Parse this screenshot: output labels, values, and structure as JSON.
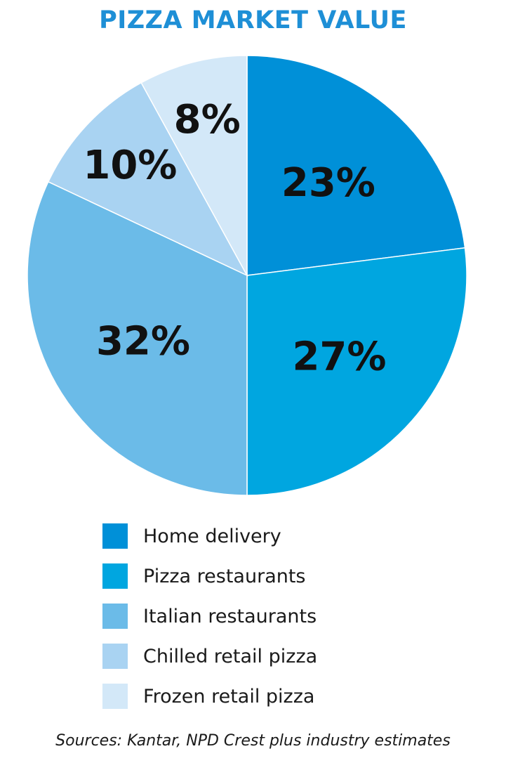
{
  "title": "PIZZA MARKET VALUE",
  "source": "Sources: Kantar, NPD Crest plus industry estimates",
  "colors": {
    "title": "#1e8fd6",
    "home_delivery": "#0090d8",
    "pizza_restaurants": "#00a6e0",
    "italian_restaurants": "#6bbbe8",
    "chilled_retail_pizza": "#a9d3f2",
    "frozen_retail_pizza": "#d3e8f8"
  },
  "chart_data": {
    "type": "pie",
    "title": "PIZZA MARKET VALUE",
    "unit": "%",
    "legend_position": "bottom",
    "start_angle": "12 o'clock",
    "direction": "clockwise",
    "slices": [
      {
        "label": "Home delivery",
        "value": 23,
        "display": "23%",
        "color": "#0090d8"
      },
      {
        "label": "Pizza restaurants",
        "value": 27,
        "display": "27%",
        "color": "#00a6e0"
      },
      {
        "label": "Italian restaurants",
        "value": 32,
        "display": "32%",
        "color": "#6bbbe8"
      },
      {
        "label": "Chilled retail pizza",
        "value": 10,
        "display": "10%",
        "color": "#a9d3f2"
      },
      {
        "label": "Frozen retail pizza",
        "value": 8,
        "display": "8%",
        "color": "#d3e8f8"
      }
    ]
  }
}
